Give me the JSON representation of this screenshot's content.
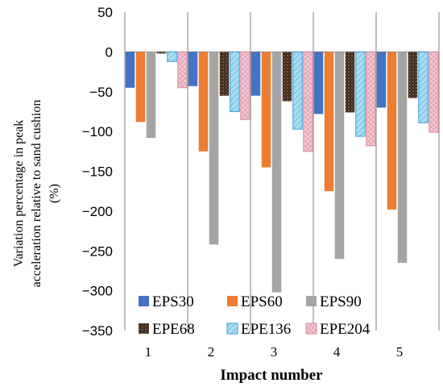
{
  "chart_data": {
    "type": "bar",
    "title": "",
    "xlabel": "Impact number",
    "ylabel_lines": [
      "Variation percentage  in peak",
      "acceleration relative to sand cushion",
      "(%)"
    ],
    "categories": [
      "1",
      "2",
      "3",
      "4",
      "5"
    ],
    "ylim": [
      -350,
      50
    ],
    "yticks": [
      50,
      0,
      -50,
      -100,
      -150,
      -200,
      -250,
      -300,
      -350
    ],
    "legend_position": "bottom-inside",
    "series": [
      {
        "name": "EPS30",
        "color": "#4472C4",
        "pattern": "solid",
        "values": [
          -45,
          -43,
          -55,
          -78,
          -70
        ]
      },
      {
        "name": "EPS60",
        "color": "#ED7D31",
        "pattern": "solid",
        "values": [
          -88,
          -125,
          -145,
          -175,
          -198
        ]
      },
      {
        "name": "EPS90",
        "color": "#A5A5A5",
        "pattern": "solid",
        "values": [
          -108,
          -242,
          -302,
          -260,
          -265
        ]
      },
      {
        "name": "EPE68",
        "color": "#3B2A22",
        "pattern": "dots",
        "values": [
          -2,
          -55,
          -62,
          -76,
          -58
        ]
      },
      {
        "name": "EPE136",
        "color": "#A9DDF3",
        "pattern": "hatch",
        "values": [
          -12,
          -75,
          -97,
          -106,
          -89
        ]
      },
      {
        "name": "EPE204",
        "color": "#F2C7D0",
        "pattern": "checker",
        "values": [
          -45,
          -85,
          -125,
          -118,
          -101
        ]
      }
    ]
  }
}
